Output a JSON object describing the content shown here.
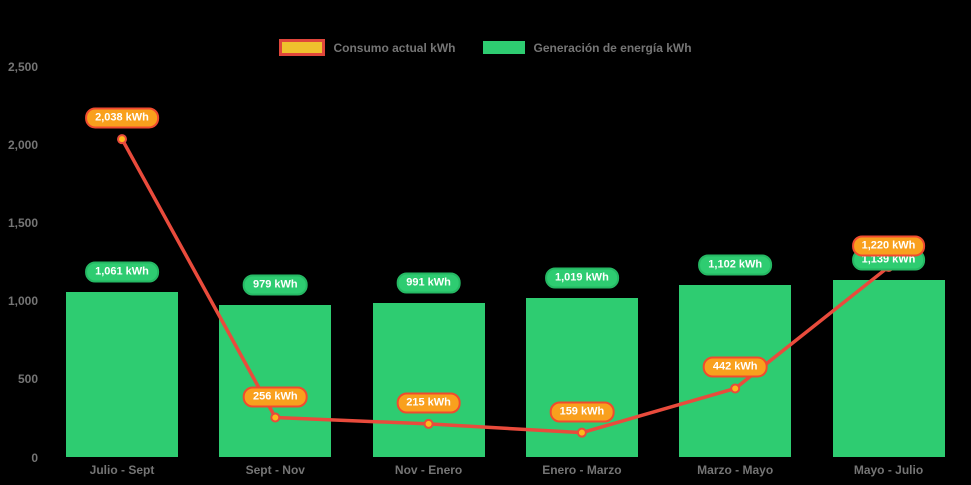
{
  "legend": {
    "consumo_label": "Consumo actual kWh",
    "generacion_label": "Generación de energía kWh"
  },
  "colors": {
    "background": "#000000",
    "bar": "#2ECC71",
    "line": "#E94B3C",
    "marker_fill": "#FFB81C",
    "bar_label_bg": "#2ECC71",
    "bar_label_border": "#25B863",
    "line_label_bg": "#F9A01D",
    "line_label_border": "#F04B2F",
    "legend_consumo_fill": "#EFC12D",
    "legend_consumo_border": "#E0463B",
    "axis_text": "#757575"
  },
  "chart_data": {
    "type": "combo-bar-line",
    "categories": [
      "Julio - Sept",
      "Sept - Nov",
      "Nov - Enero",
      "Enero - Marzo",
      "Marzo - Mayo",
      "Mayo - Julio"
    ],
    "series": [
      {
        "name": "Consumo actual kWh",
        "type": "line",
        "values": [
          2038,
          256,
          215,
          159,
          442,
          1220
        ],
        "labels": [
          "2,038 kWh",
          "256 kWh",
          "215 kWh",
          "159 kWh",
          "442 kWh",
          "1,220 kWh"
        ]
      },
      {
        "name": "Generación de energía kWh",
        "type": "bar",
        "values": [
          1061,
          979,
          991,
          1019,
          1102,
          1139
        ],
        "labels": [
          "1,061 kWh",
          "979 kWh",
          "991 kWh",
          "1,019 kWh",
          "1,102 kWh",
          "1,139 kWh"
        ]
      }
    ],
    "ytick_values": [
      0,
      500,
      1000,
      1500,
      2000,
      2500
    ],
    "ytick_labels": [
      "0",
      "500",
      "1,000",
      "1,500",
      "2,000",
      "2,500"
    ],
    "ylim": [
      0,
      2500
    ],
    "grid": false,
    "legend_position": "top",
    "background": "#000000"
  }
}
